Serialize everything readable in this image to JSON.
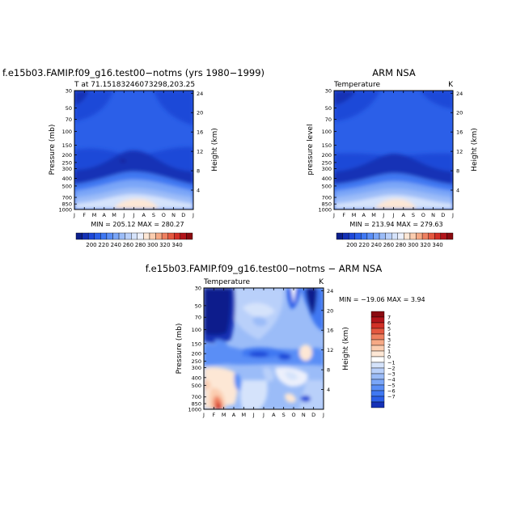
{
  "chart_data": [
    {
      "type": "heatmap",
      "title": "f.e15b03.FAMIP.f09_g16.test00−notms (yrs 1980−1999)",
      "subtitle": "T at 71.15183246073298,203.25",
      "ylabel": "Pressure (mb)",
      "y2label": "Height (km)",
      "stats": "MIN = 205.12  MAX = 280.27",
      "ylim": [
        1000,
        30
      ],
      "y2lim": [
        0,
        24
      ]
    },
    {
      "type": "heatmap",
      "title": "ARM NSA",
      "subtitle_left": "Temperature",
      "subtitle_right": "K",
      "ylabel": "pressure level",
      "y2label": "Height (km)",
      "stats": "MIN = 213.94  MAX = 279.63",
      "ylim": [
        1000,
        30
      ],
      "y2lim": [
        0,
        24
      ]
    },
    {
      "type": "heatmap",
      "title": "f.e15b03.FAMIP.f09_g16.test00−notms − ARM NSA",
      "subtitle_left": "Temperature",
      "subtitle_right": "K",
      "ylabel": "Pressure (mb)",
      "y2label": "Height (km)",
      "stats": "MIN = −19.06  MAX =    3.94",
      "ylim": [
        1000,
        30
      ],
      "y2lim": [
        0,
        24
      ]
    }
  ],
  "axes": {
    "months": [
      "J",
      "F",
      "M",
      "A",
      "M",
      "J",
      "J",
      "A",
      "S",
      "O",
      "N",
      "D",
      "J"
    ],
    "pressure_ticks": [
      {
        "p": 30,
        "label": "30"
      },
      {
        "p": 50,
        "label": "50"
      },
      {
        "p": 70,
        "label": "70"
      },
      {
        "p": 100,
        "label": "100"
      },
      {
        "p": 150,
        "label": "150"
      },
      {
        "p": 200,
        "label": "200"
      },
      {
        "p": 250,
        "label": "250"
      },
      {
        "p": 300,
        "label": "300"
      },
      {
        "p": 400,
        "label": "400"
      },
      {
        "p": 500,
        "label": "500"
      },
      {
        "p": 700,
        "label": "700"
      },
      {
        "p": 850,
        "label": "850"
      },
      {
        "p": 1000,
        "label": "1000"
      }
    ],
    "height_ticks": [
      {
        "z": 4,
        "label": "4"
      },
      {
        "z": 8,
        "label": "8"
      },
      {
        "z": 12,
        "label": "12"
      },
      {
        "z": 16,
        "label": "16"
      },
      {
        "z": 20,
        "label": "20"
      },
      {
        "z": 24,
        "label": "24"
      }
    ]
  },
  "colorbar_abs": {
    "labels": [
      "200",
      "220",
      "240",
      "260",
      "280",
      "300",
      "320",
      "340"
    ],
    "colors": [
      "#0c1f8c",
      "#1531b6",
      "#1e48d8",
      "#2b5fe8",
      "#3f78f2",
      "#5a8ef6",
      "#7aa6f8",
      "#9bbcf8",
      "#b9d0fa",
      "#d5e3fb",
      "#ecf0fc",
      "#fde7d5",
      "#fbcdb0",
      "#f6a985",
      "#ee8060",
      "#e45840",
      "#d23027",
      "#b2141a",
      "#8a0a10"
    ]
  },
  "colorbar_diff": {
    "labels": [
      "7",
      "6",
      "5",
      "4",
      "3",
      "2",
      "1",
      "0",
      "−1",
      "−2",
      "−3",
      "−4",
      "−5",
      "−6",
      "−7"
    ],
    "colors": [
      "#8a0a10",
      "#b2141a",
      "#d23027",
      "#e45840",
      "#ee8060",
      "#f6a985",
      "#fbcdb0",
      "#fde7d5",
      "#ffffff",
      "#d5e3fb",
      "#b9d0fa",
      "#9bbcf8",
      "#7aa6f8",
      "#5a8ef6",
      "#3f78f2",
      "#2b5fe8",
      "#1531b6"
    ]
  }
}
